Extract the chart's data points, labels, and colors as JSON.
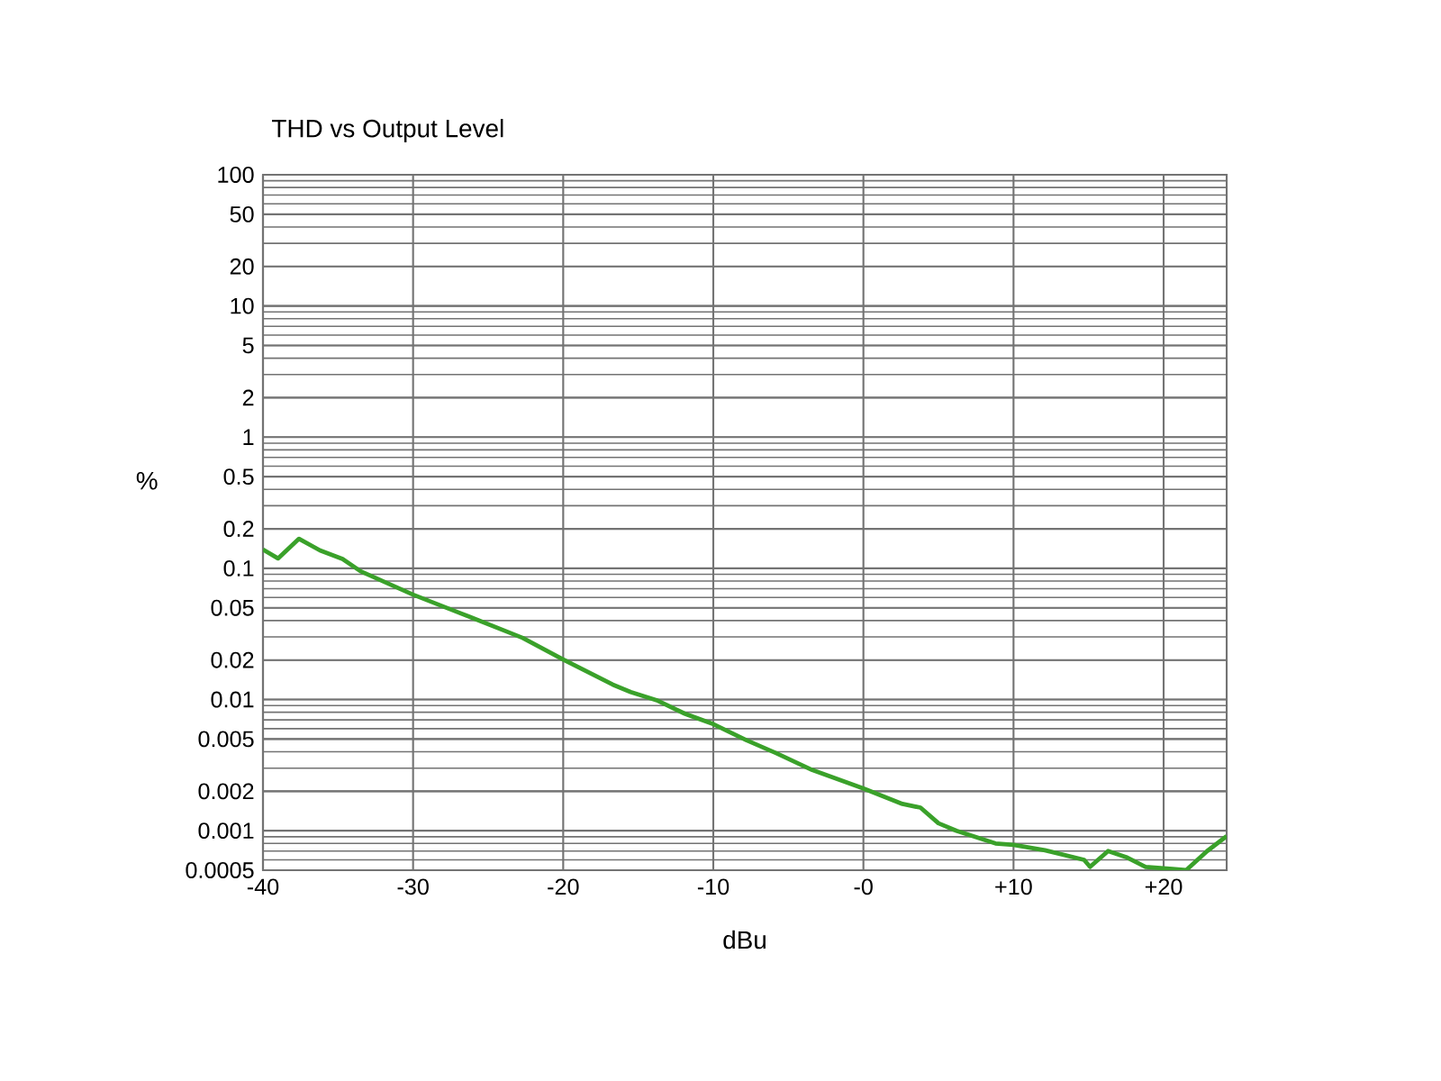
{
  "chart_data": {
    "type": "line",
    "title": "THD vs Output Level",
    "xlabel": "dBu",
    "ylabel": "%",
    "log": "y",
    "grid": true,
    "marker": "none",
    "line_style": "solid",
    "xlim": [
      -40,
      24.2
    ],
    "ylim": [
      0.0005,
      100
    ],
    "xticks": [
      -40,
      -30,
      -20,
      -10,
      {
        "value": 0,
        "label": "-0"
      },
      {
        "value": 10,
        "label": "+10"
      },
      {
        "value": 20,
        "label": "+20"
      }
    ],
    "yticks": [
      0.0005,
      0.001,
      0.002,
      0.005,
      0.01,
      0.02,
      0.05,
      0.1,
      0.2,
      0.5,
      1,
      2,
      5,
      10,
      20,
      50,
      100
    ],
    "series": [
      {
        "color": "#3aa12a",
        "x": [
          -40,
          -39,
          -37.6,
          -36.2,
          -34.7,
          -33.5,
          -30,
          -26.3,
          -22.7,
          -20,
          -16.7,
          -15.5,
          -13.7,
          -11.9,
          -10,
          -7.8,
          -5.8,
          -3.4,
          0,
          2.6,
          3.8,
          5,
          6.2,
          8.8,
          10,
          12.1,
          14.7,
          15.1,
          16.3,
          17.5,
          18.8,
          20.6,
          21.5,
          22.9,
          24.2
        ],
        "values": [
          0.139,
          0.119,
          0.168,
          0.137,
          0.118,
          0.095,
          0.063,
          0.043,
          0.0295,
          0.0202,
          0.013,
          0.0114,
          0.0098,
          0.0078,
          0.0065,
          0.0049,
          0.0039,
          0.0029,
          0.0021,
          0.0016,
          0.0015,
          0.00114,
          0.001,
          0.0008,
          0.00078,
          0.00071,
          0.0006,
          0.00053,
          0.0007,
          0.00063,
          0.00053,
          0.00051,
          0.0005,
          0.0007,
          0.00091
        ]
      }
    ]
  }
}
